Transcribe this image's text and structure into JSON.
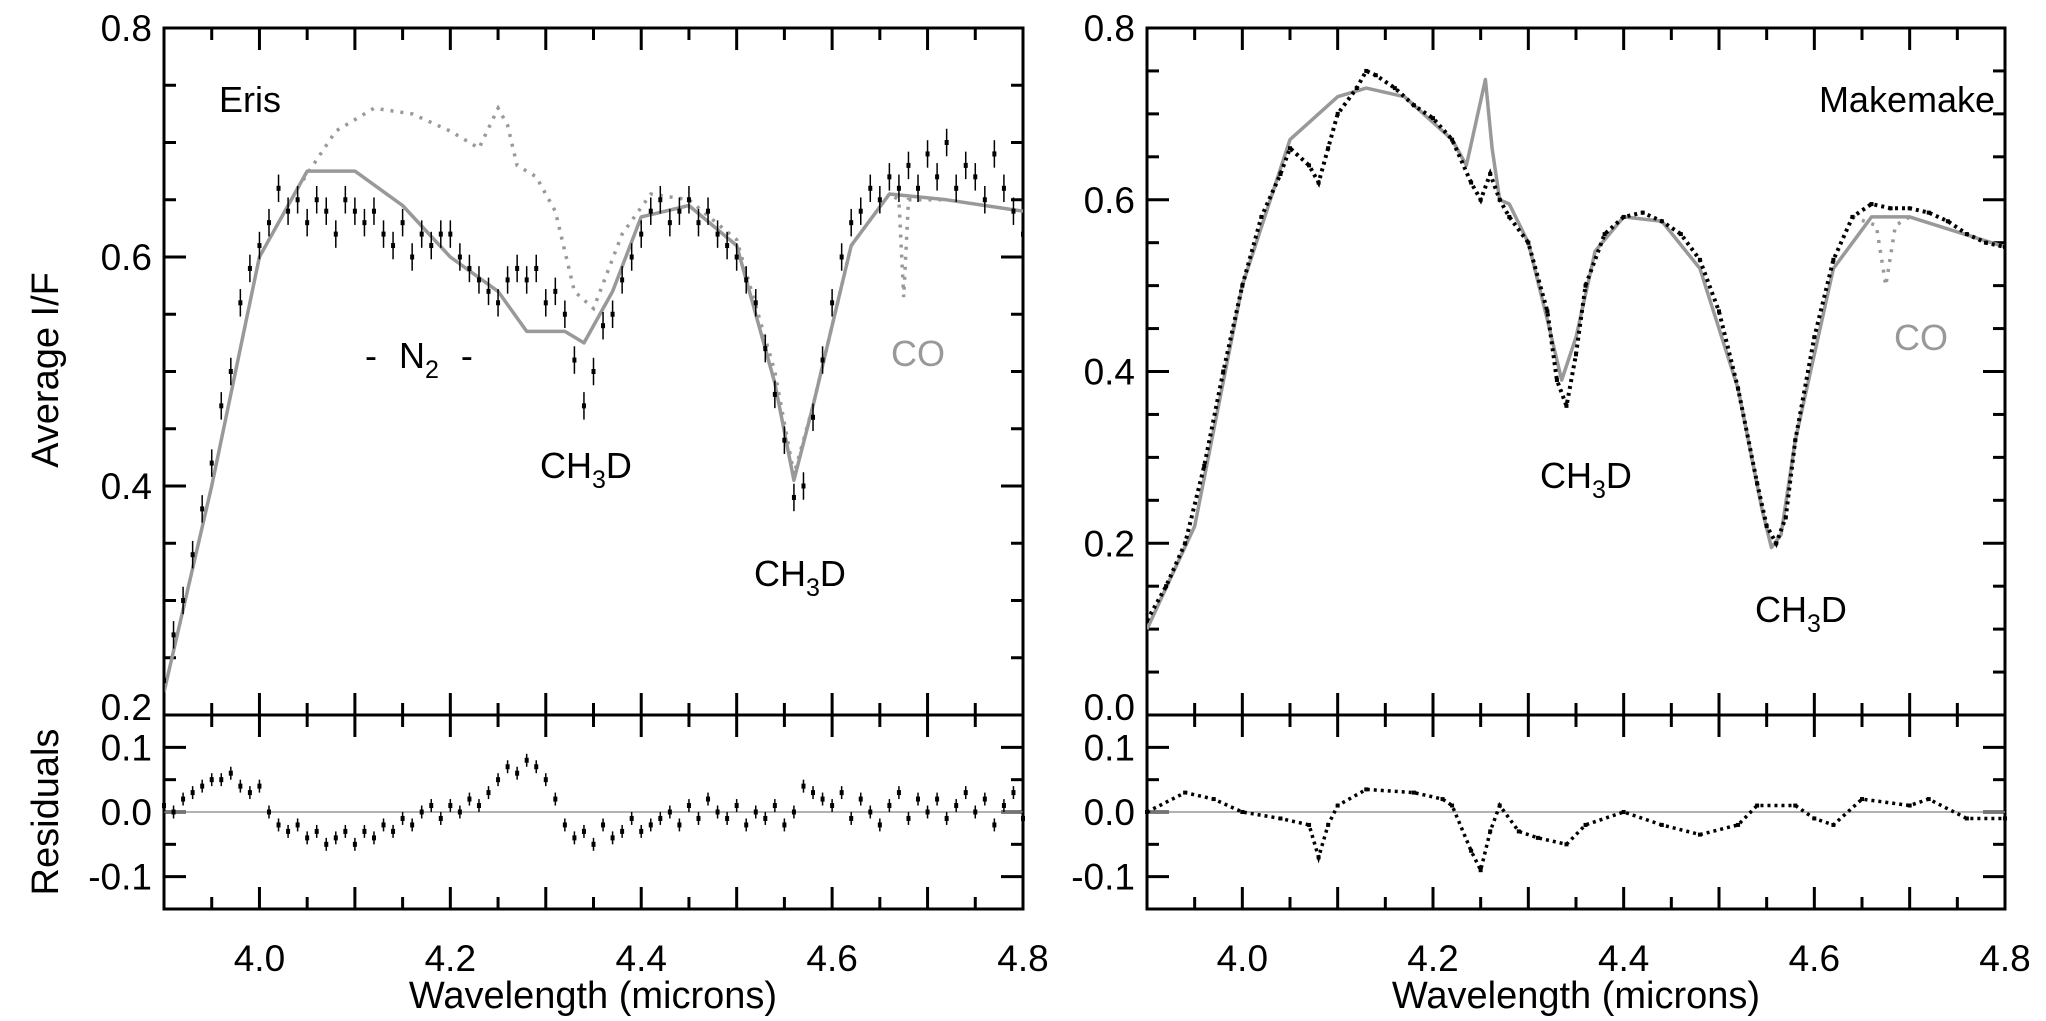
{
  "chart_data": [
    {
      "type": "scatter",
      "title": "",
      "panel_label": "Eris",
      "xlabel": "Wavelength (microns)",
      "ylabel": "Average I/F",
      "xlim": [
        3.9,
        4.8
      ],
      "ylim": [
        0.2,
        0.8
      ],
      "x_ticks": [
        "4.0",
        "4.2",
        "4.4",
        "4.6",
        "4.8"
      ],
      "y_ticks": [
        "0.2",
        "0.4",
        "0.6",
        "0.8"
      ],
      "data_x_start": 3.9,
      "data_x_step": 0.01,
      "data": [
        0.23,
        0.27,
        0.3,
        0.34,
        0.38,
        0.42,
        0.47,
        0.5,
        0.56,
        0.59,
        0.61,
        0.63,
        0.66,
        0.64,
        0.65,
        0.63,
        0.65,
        0.64,
        0.62,
        0.65,
        0.64,
        0.63,
        0.64,
        0.62,
        0.61,
        0.63,
        0.6,
        0.62,
        0.61,
        0.62,
        0.62,
        0.6,
        0.59,
        0.58,
        0.57,
        0.56,
        0.58,
        0.59,
        0.58,
        0.59,
        0.56,
        0.57,
        0.55,
        0.51,
        0.47,
        0.5,
        0.54,
        0.55,
        0.58,
        0.6,
        0.62,
        0.64,
        0.65,
        0.63,
        0.64,
        0.65,
        0.63,
        0.64,
        0.62,
        0.61,
        0.6,
        0.58,
        0.56,
        0.52,
        0.48,
        0.44,
        0.39,
        0.4,
        0.46,
        0.51,
        0.56,
        0.6,
        0.63,
        0.64,
        0.66,
        0.65,
        0.67,
        0.66,
        0.68,
        0.66,
        0.69,
        0.67,
        0.7,
        0.66,
        0.68,
        0.67,
        0.65,
        0.69,
        0.66,
        0.64,
        0.62
      ],
      "error_bar": 0.012,
      "model": [
        [
          3.9,
          0.22
        ],
        [
          3.95,
          0.4
        ],
        [
          4.0,
          0.6
        ],
        [
          4.05,
          0.675
        ],
        [
          4.1,
          0.675
        ],
        [
          4.15,
          0.645
        ],
        [
          4.2,
          0.6
        ],
        [
          4.25,
          0.57
        ],
        [
          4.28,
          0.535
        ],
        [
          4.32,
          0.535
        ],
        [
          4.34,
          0.525
        ],
        [
          4.37,
          0.57
        ],
        [
          4.4,
          0.635
        ],
        [
          4.45,
          0.645
        ],
        [
          4.5,
          0.61
        ],
        [
          4.54,
          0.49
        ],
        [
          4.56,
          0.405
        ],
        [
          4.58,
          0.47
        ],
        [
          4.62,
          0.61
        ],
        [
          4.66,
          0.655
        ],
        [
          4.72,
          0.65
        ],
        [
          4.8,
          0.64
        ]
      ],
      "model_dotted": [
        [
          4.04,
          0.66
        ],
        [
          4.08,
          0.71
        ],
        [
          4.12,
          0.73
        ],
        [
          4.16,
          0.725
        ],
        [
          4.2,
          0.71
        ],
        [
          4.23,
          0.695
        ],
        [
          4.25,
          0.73
        ],
        [
          4.26,
          0.715
        ],
        [
          4.27,
          0.68
        ],
        [
          4.29,
          0.67
        ],
        [
          4.31,
          0.64
        ],
        [
          4.33,
          0.57
        ],
        [
          4.35,
          0.555
        ],
        [
          4.38,
          0.62
        ],
        [
          4.41,
          0.655
        ],
        [
          4.45,
          0.65
        ],
        [
          4.5,
          0.615
        ],
        [
          4.54,
          0.5
        ],
        [
          4.56,
          0.41
        ],
        [
          4.58,
          0.47
        ],
        [
          4.62,
          0.61
        ],
        [
          4.66,
          0.655
        ],
        [
          4.67,
          0.65
        ],
        [
          4.675,
          0.565
        ],
        [
          4.68,
          0.65
        ],
        [
          4.72,
          0.65
        ]
      ],
      "annotations": {
        "n2": {
          "pre": "-",
          "main": "N",
          "sub": "2",
          "post": "-"
        },
        "ch3d_1": {
          "main": "CH",
          "sub": "3",
          "tail": "D"
        },
        "ch3d_2": {
          "main": "CH",
          "sub": "3",
          "tail": "D"
        },
        "co": "CO"
      },
      "residuals": {
        "ylabel": "Residuals",
        "ylim": [
          -0.15,
          0.15
        ],
        "y_ticks": [
          "-0.1",
          "0.0",
          "0.1"
        ],
        "values": [
          0.01,
          0.0,
          0.02,
          0.03,
          0.04,
          0.05,
          0.05,
          0.06,
          0.04,
          0.03,
          0.04,
          0.0,
          -0.02,
          -0.03,
          -0.02,
          -0.04,
          -0.03,
          -0.05,
          -0.04,
          -0.03,
          -0.05,
          -0.03,
          -0.04,
          -0.02,
          -0.03,
          -0.01,
          -0.02,
          0.0,
          0.01,
          -0.01,
          0.01,
          0.0,
          0.02,
          0.01,
          0.03,
          0.05,
          0.07,
          0.06,
          0.08,
          0.07,
          0.05,
          0.02,
          -0.02,
          -0.04,
          -0.03,
          -0.05,
          -0.02,
          -0.04,
          -0.03,
          -0.01,
          -0.03,
          -0.02,
          -0.01,
          0.0,
          -0.02,
          0.01,
          -0.01,
          0.02,
          0.0,
          -0.01,
          0.01,
          -0.02,
          0.0,
          -0.01,
          0.01,
          -0.02,
          0.0,
          0.04,
          0.03,
          0.02,
          0.01,
          0.03,
          -0.01,
          0.02,
          0.0,
          -0.02,
          0.01,
          0.03,
          -0.01,
          0.02,
          0.0,
          0.02,
          -0.01,
          0.01,
          0.03,
          0.0,
          0.02,
          -0.02,
          0.01,
          0.03,
          -0.01
        ]
      }
    },
    {
      "type": "scatter",
      "title": "",
      "panel_label": "Makemake",
      "xlabel": "Wavelength (microns)",
      "xlim": [
        3.9,
        4.8
      ],
      "ylim": [
        0.0,
        0.8
      ],
      "x_ticks": [
        "4.0",
        "4.2",
        "4.4",
        "4.6",
        "4.8"
      ],
      "y_ticks": [
        "0.0",
        "0.2",
        "0.4",
        "0.6",
        "0.8"
      ],
      "data": [
        [
          3.9,
          0.11
        ],
        [
          3.92,
          0.15
        ],
        [
          3.94,
          0.2
        ],
        [
          3.96,
          0.29
        ],
        [
          3.98,
          0.4
        ],
        [
          4.0,
          0.5
        ],
        [
          4.02,
          0.58
        ],
        [
          4.04,
          0.63
        ],
        [
          4.05,
          0.66
        ],
        [
          4.07,
          0.64
        ],
        [
          4.08,
          0.62
        ],
        [
          4.09,
          0.66
        ],
        [
          4.1,
          0.7
        ],
        [
          4.12,
          0.73
        ],
        [
          4.13,
          0.75
        ],
        [
          4.14,
          0.745
        ],
        [
          4.16,
          0.73
        ],
        [
          4.18,
          0.71
        ],
        [
          4.2,
          0.695
        ],
        [
          4.22,
          0.67
        ],
        [
          4.24,
          0.62
        ],
        [
          4.25,
          0.6
        ],
        [
          4.26,
          0.63
        ],
        [
          4.27,
          0.6
        ],
        [
          4.28,
          0.58
        ],
        [
          4.3,
          0.55
        ],
        [
          4.32,
          0.47
        ],
        [
          4.33,
          0.39
        ],
        [
          4.34,
          0.36
        ],
        [
          4.35,
          0.42
        ],
        [
          4.36,
          0.5
        ],
        [
          4.38,
          0.56
        ],
        [
          4.4,
          0.58
        ],
        [
          4.42,
          0.585
        ],
        [
          4.44,
          0.575
        ],
        [
          4.46,
          0.56
        ],
        [
          4.48,
          0.53
        ],
        [
          4.5,
          0.47
        ],
        [
          4.52,
          0.38
        ],
        [
          4.54,
          0.27
        ],
        [
          4.55,
          0.22
        ],
        [
          4.56,
          0.2
        ],
        [
          4.57,
          0.23
        ],
        [
          4.58,
          0.32
        ],
        [
          4.6,
          0.44
        ],
        [
          4.62,
          0.53
        ],
        [
          4.64,
          0.58
        ],
        [
          4.66,
          0.595
        ],
        [
          4.68,
          0.59
        ],
        [
          4.7,
          0.59
        ],
        [
          4.72,
          0.585
        ],
        [
          4.74,
          0.575
        ],
        [
          4.76,
          0.56
        ],
        [
          4.78,
          0.55
        ],
        [
          4.8,
          0.545
        ]
      ],
      "model": [
        [
          3.9,
          0.1
        ],
        [
          3.95,
          0.22
        ],
        [
          4.0,
          0.5
        ],
        [
          4.05,
          0.67
        ],
        [
          4.1,
          0.72
        ],
        [
          4.13,
          0.73
        ],
        [
          4.17,
          0.72
        ],
        [
          4.22,
          0.67
        ],
        [
          4.235,
          0.64
        ],
        [
          4.245,
          0.69
        ],
        [
          4.255,
          0.74
        ],
        [
          4.262,
          0.66
        ],
        [
          4.27,
          0.6
        ],
        [
          4.28,
          0.595
        ],
        [
          4.3,
          0.55
        ],
        [
          4.32,
          0.46
        ],
        [
          4.335,
          0.39
        ],
        [
          4.35,
          0.44
        ],
        [
          4.37,
          0.54
        ],
        [
          4.4,
          0.58
        ],
        [
          4.44,
          0.575
        ],
        [
          4.48,
          0.52
        ],
        [
          4.52,
          0.38
        ],
        [
          4.545,
          0.24
        ],
        [
          4.555,
          0.195
        ],
        [
          4.565,
          0.21
        ],
        [
          4.58,
          0.32
        ],
        [
          4.62,
          0.52
        ],
        [
          4.66,
          0.58
        ],
        [
          4.7,
          0.58
        ],
        [
          4.8,
          0.545
        ]
      ],
      "model_dotted": [
        [
          4.64,
          0.58
        ],
        [
          4.665,
          0.57
        ],
        [
          4.675,
          0.5
        ],
        [
          4.685,
          0.57
        ],
        [
          4.7,
          0.58
        ]
      ],
      "annotations": {
        "ch3d_1": {
          "main": "CH",
          "sub": "3",
          "tail": "D"
        },
        "ch3d_2": {
          "main": "CH",
          "sub": "3",
          "tail": "D"
        },
        "co": "CO"
      },
      "residuals": {
        "ylim": [
          -0.15,
          0.15
        ],
        "y_ticks": [
          "-0.1",
          "0.0",
          "0.1"
        ],
        "values": [
          [
            3.9,
            0.0
          ],
          [
            3.94,
            0.03
          ],
          [
            3.97,
            0.02
          ],
          [
            4.0,
            0.0
          ],
          [
            4.04,
            -0.01
          ],
          [
            4.07,
            -0.02
          ],
          [
            4.08,
            -0.07
          ],
          [
            4.09,
            -0.02
          ],
          [
            4.1,
            0.01
          ],
          [
            4.13,
            0.035
          ],
          [
            4.18,
            0.03
          ],
          [
            4.21,
            0.02
          ],
          [
            4.22,
            0.01
          ],
          [
            4.24,
            -0.06
          ],
          [
            4.25,
            -0.09
          ],
          [
            4.26,
            -0.03
          ],
          [
            4.27,
            0.01
          ],
          [
            4.29,
            -0.03
          ],
          [
            4.31,
            -0.04
          ],
          [
            4.34,
            -0.05
          ],
          [
            4.36,
            -0.02
          ],
          [
            4.4,
            0.0
          ],
          [
            4.44,
            -0.02
          ],
          [
            4.48,
            -0.035
          ],
          [
            4.52,
            -0.02
          ],
          [
            4.54,
            0.01
          ],
          [
            4.58,
            0.01
          ],
          [
            4.6,
            -0.01
          ],
          [
            4.62,
            -0.02
          ],
          [
            4.65,
            0.02
          ],
          [
            4.7,
            0.01
          ],
          [
            4.72,
            0.02
          ],
          [
            4.76,
            -0.01
          ],
          [
            4.8,
            -0.01
          ]
        ]
      }
    }
  ],
  "colors": {
    "data": "#000000",
    "model": "#999999",
    "axis": "#000000",
    "zero_line": "#999999"
  }
}
